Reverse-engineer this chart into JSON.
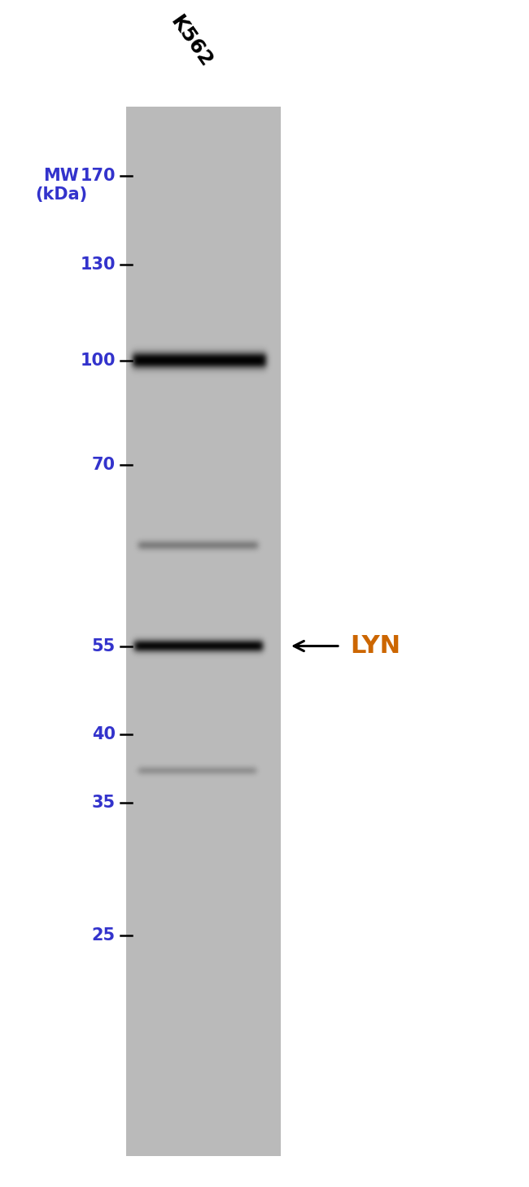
{
  "background_color": "#ffffff",
  "sample_label": "K562",
  "sample_label_rotation": -55,
  "sample_label_fontsize": 18,
  "mw_label": "MW\n(kDa)",
  "mw_label_fontsize": 15,
  "mw_markers": [
    170,
    130,
    100,
    70,
    55,
    40,
    35,
    25
  ],
  "marker_fontsize": 15,
  "marker_color_number": "#3333cc",
  "marker_color_dash": "#000000",
  "lyn_label": "LYN",
  "lyn_label_fontsize": 22,
  "lyn_label_color": "#cc6600",
  "arrow_color": "#000000",
  "gel_gray": 0.73,
  "band1_intensity": 0.93,
  "band2_intensity": 0.88,
  "faint1_intensity": 0.28,
  "faint2_intensity": 0.2
}
